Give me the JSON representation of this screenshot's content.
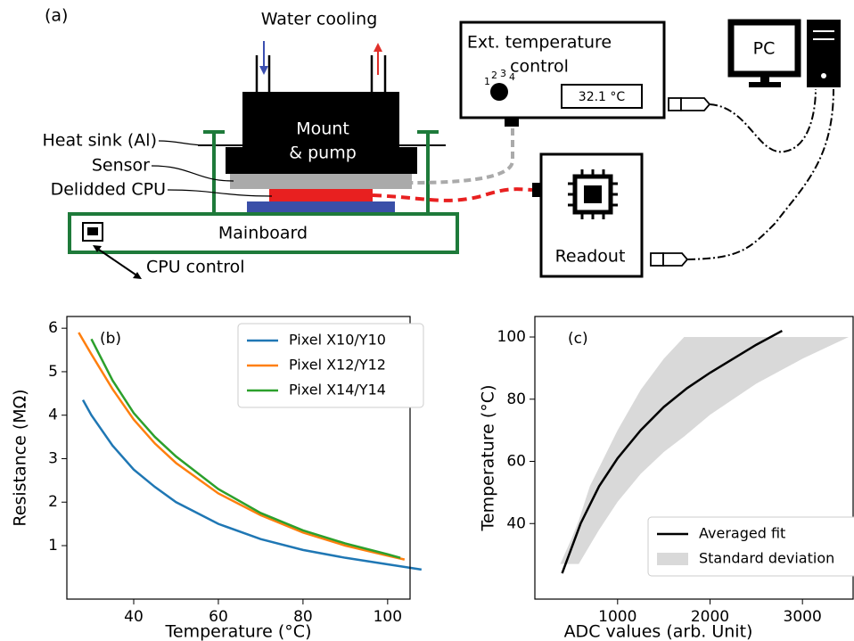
{
  "diagram": {
    "panel_label": "(a)",
    "water_cooling": "Water cooling",
    "mount": [
      "Mount",
      "& pump"
    ],
    "heat_sink": "Heat sink (Al)",
    "sensor": "Sensor",
    "cpu": "Delidded CPU",
    "mainboard": "Mainboard",
    "cpu_control": "CPU control",
    "ext_control": [
      "Ext. temperature",
      "control"
    ],
    "display": "32.1 °C",
    "dial_labels": [
      "1",
      "2",
      "3",
      "4"
    ],
    "pc": "PC",
    "readout": "Readout"
  },
  "chart_data": [
    {
      "type": "line",
      "panel_label": "(b)",
      "xlabel": "Temperature (°C)",
      "ylabel": "Resistance (MΩ)",
      "xlim": [
        24.2,
        105.3
      ],
      "ylim": [
        -0.23,
        6.27
      ],
      "xticks": [
        40,
        60,
        80,
        100
      ],
      "yticks": [
        1,
        2,
        3,
        4,
        5,
        6
      ],
      "legend": "upper right",
      "series": [
        {
          "name": "Pixel X10/Y10",
          "color": "#1f77b4",
          "x": [
            28,
            30,
            35,
            40,
            45,
            50,
            60,
            70,
            80,
            90,
            100,
            108
          ],
          "values": [
            4.35,
            4.0,
            3.3,
            2.75,
            2.35,
            2.0,
            1.5,
            1.15,
            0.9,
            0.72,
            0.57,
            0.45
          ]
        },
        {
          "name": "Pixel X12/Y12",
          "color": "#ff7f0e",
          "x": [
            27,
            30,
            35,
            40,
            45,
            50,
            60,
            70,
            80,
            90,
            100,
            104
          ],
          "values": [
            5.9,
            5.4,
            4.6,
            3.9,
            3.35,
            2.9,
            2.2,
            1.7,
            1.3,
            1.0,
            0.77,
            0.68
          ]
        },
        {
          "name": "Pixel X14/Y14",
          "color": "#2ca02c",
          "x": [
            30,
            35,
            40,
            45,
            50,
            60,
            70,
            80,
            90,
            100,
            103
          ],
          "values": [
            5.75,
            4.8,
            4.05,
            3.5,
            3.05,
            2.3,
            1.75,
            1.35,
            1.05,
            0.8,
            0.72
          ]
        }
      ]
    },
    {
      "type": "line",
      "panel_label": "(c)",
      "xlabel": "ADC values (arb. Unit)",
      "ylabel": "Temperature (°C)",
      "xlim": [
        105,
        3548
      ],
      "ylim": [
        15.7,
        106.6
      ],
      "xticks": [
        1000,
        2000,
        3000
      ],
      "yticks": [
        40,
        60,
        80,
        100
      ],
      "legend": "lower right",
      "series": [
        {
          "name": "Averaged fit",
          "color": "#000000",
          "x": [
            400,
            600,
            800,
            1000,
            1250,
            1500,
            1750,
            2000,
            2250,
            2500,
            2780
          ],
          "values": [
            24,
            40,
            52,
            61,
            70,
            77.5,
            83.5,
            88.5,
            93,
            97.5,
            102
          ]
        }
      ],
      "band": {
        "name": "Standard deviation",
        "color": "#d9d9d9",
        "x": [
          380,
          500,
          580,
          700,
          800,
          1000,
          1250,
          1500,
          1720,
          2000,
          2500,
          3000,
          3500
        ],
        "upper": [
          27,
          35,
          41,
          52,
          58,
          70,
          83,
          93,
          100,
          100,
          100,
          100,
          100
        ],
        "lower": [
          27,
          27,
          27,
          33,
          38,
          47,
          56,
          63,
          68,
          75,
          85,
          93,
          100
        ]
      }
    }
  ]
}
